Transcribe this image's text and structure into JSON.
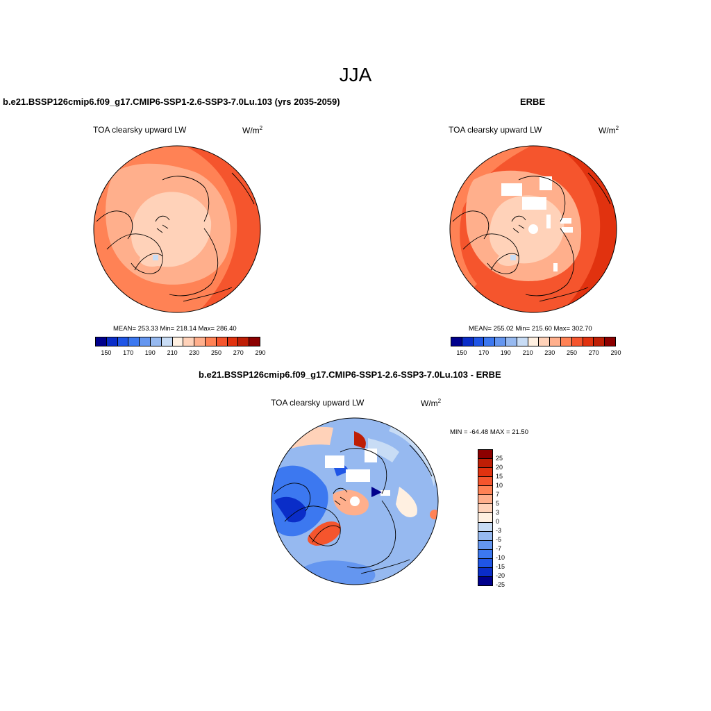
{
  "season": "JJA",
  "panels": {
    "model": {
      "title": "b.e21.BSSP126cmip6.f09_g17.CMIP6-SSP1-2.6-SSP3-7.0Lu.103 (yrs 2035-2059)",
      "variable": "TOA clearsky upward LW",
      "units_base": "W/m",
      "units_exp": "2",
      "stats": "MEAN= 253.33  Min= 218.14  Max= 286.40"
    },
    "obs": {
      "title": "ERBE",
      "variable": "TOA clearsky upward LW",
      "units_base": "W/m",
      "units_exp": "2",
      "stats": "MEAN= 255.02  Min= 215.60  Max= 302.70"
    },
    "diff": {
      "title": "b.e21.BSSP126cmip6.f09_g17.CMIP6-SSP1-2.6-SSP3-7.0Lu.103 - ERBE",
      "variable": "TOA clearsky upward LW",
      "units_base": "W/m",
      "units_exp": "2",
      "stats": "MIN = -64.48 MAX =  21.50"
    }
  },
  "colorbar_abs": {
    "colors": [
      "#00008c",
      "#0a2dc8",
      "#1f55e6",
      "#3c78f0",
      "#6496f0",
      "#96b9f0",
      "#c8dcf5",
      "#fff0e1",
      "#ffd2b9",
      "#ffaf8c",
      "#ff8255",
      "#f5552d",
      "#e1320f",
      "#be1e05",
      "#8c0000"
    ],
    "labels": [
      "150",
      "170",
      "190",
      "210",
      "230",
      "250",
      "270",
      "290"
    ]
  },
  "colorbar_diff": {
    "colors": [
      "#8c0000",
      "#be1e05",
      "#e1320f",
      "#f5552d",
      "#ff8255",
      "#ffaf8c",
      "#ffd2b9",
      "#fff0e1",
      "#c8dcf5",
      "#96b9f0",
      "#6496f0",
      "#3c78f0",
      "#1f55e6",
      "#0a2dc8",
      "#00008c"
    ],
    "labels": [
      "25",
      "20",
      "15",
      "10",
      "7",
      "5",
      "3",
      "0",
      "-3",
      "-5",
      "-7",
      "-10",
      "-15",
      "-20",
      "-25"
    ]
  }
}
